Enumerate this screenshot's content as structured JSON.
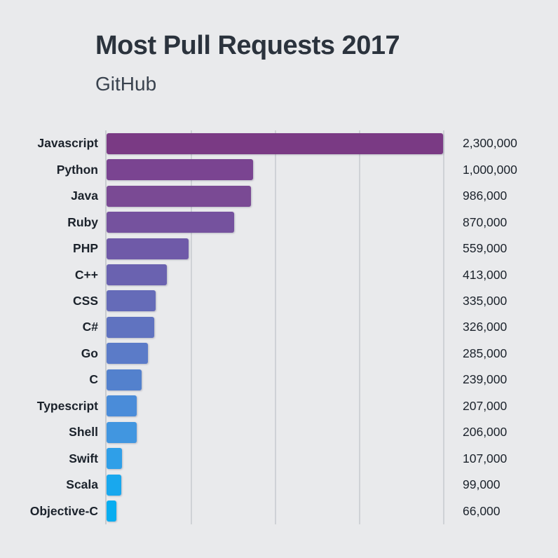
{
  "header": {
    "title": "Most Pull Requests 2017",
    "subtitle": "GitHub"
  },
  "chart_data": {
    "type": "bar",
    "orientation": "horizontal",
    "title": "Most Pull Requests 2017",
    "subtitle": "GitHub",
    "categories": [
      "Javascript",
      "Python",
      "Java",
      "Ruby",
      "PHP",
      "C++",
      "CSS",
      "C#",
      "Go",
      "C",
      "Typescript",
      "Shell",
      "Swift",
      "Scala",
      "Objective-C"
    ],
    "values": [
      2300000,
      1000000,
      986000,
      870000,
      559000,
      413000,
      335000,
      326000,
      285000,
      239000,
      207000,
      206000,
      107000,
      99000,
      66000
    ],
    "value_labels": [
      "2,300,000",
      "1,000,000",
      "986,000",
      "870,000",
      "559,000",
      "413,000",
      "335,000",
      "326,000",
      "285,000",
      "239,000",
      "207,000",
      "206,000",
      "107,000",
      "99,000",
      "66,000"
    ],
    "xlim": [
      0,
      2300000
    ],
    "grid": "vertical gridlines at quarters of axis max, no tick labels",
    "legend": "none",
    "bar_colors": [
      "#7a3a84",
      "#7a4491",
      "#7a4a94",
      "#75529e",
      "#6f5aa8",
      "#6a62b0",
      "#656bb8",
      "#6073c0",
      "#5b7bc8",
      "#5381cd",
      "#4a8cd9",
      "#4196e0",
      "#2f9fe8",
      "#18a8ee",
      "#09adf0"
    ],
    "background_color": "#e9eaec",
    "gridline_color": "#cfd2d6",
    "text_color": "#1b222b"
  }
}
